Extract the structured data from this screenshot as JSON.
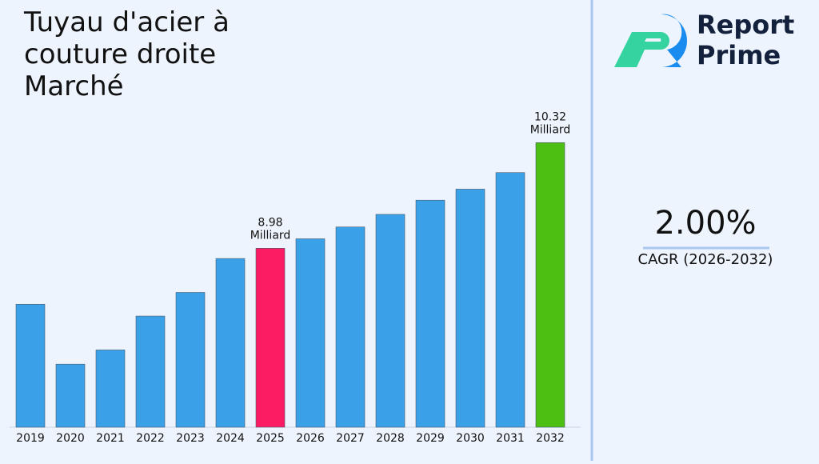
{
  "chart_data": {
    "type": "bar",
    "title": "Tuyau d'acier à couture droite Marché",
    "categories": [
      "2019",
      "2020",
      "2021",
      "2022",
      "2023",
      "2024",
      "2025",
      "2026",
      "2027",
      "2028",
      "2029",
      "2030",
      "2031",
      "2032"
    ],
    "values": [
      8.27,
      7.51,
      7.69,
      8.12,
      8.42,
      8.85,
      8.98,
      9.1,
      9.25,
      9.41,
      9.59,
      9.73,
      9.94,
      10.32
    ],
    "value_labels": [
      null,
      null,
      null,
      null,
      null,
      null,
      "8.98 Milliard",
      null,
      null,
      null,
      null,
      null,
      null,
      "10.32 Milliard"
    ],
    "colors": [
      "#3aa0e8",
      "#3aa0e8",
      "#3aa0e8",
      "#3aa0e8",
      "#3aa0e8",
      "#3aa0e8",
      "#fc1c64",
      "#3aa0e8",
      "#3aa0e8",
      "#3aa0e8",
      "#3aa0e8",
      "#3aa0e8",
      "#3aa0e8",
      "#4cbf12"
    ],
    "ylim": [
      6.71,
      10.81
    ]
  },
  "logo": {
    "line1": "Report",
    "line2": "Prime"
  },
  "cagr": {
    "value": "2.00%",
    "label": "CAGR (2026-2032)"
  }
}
